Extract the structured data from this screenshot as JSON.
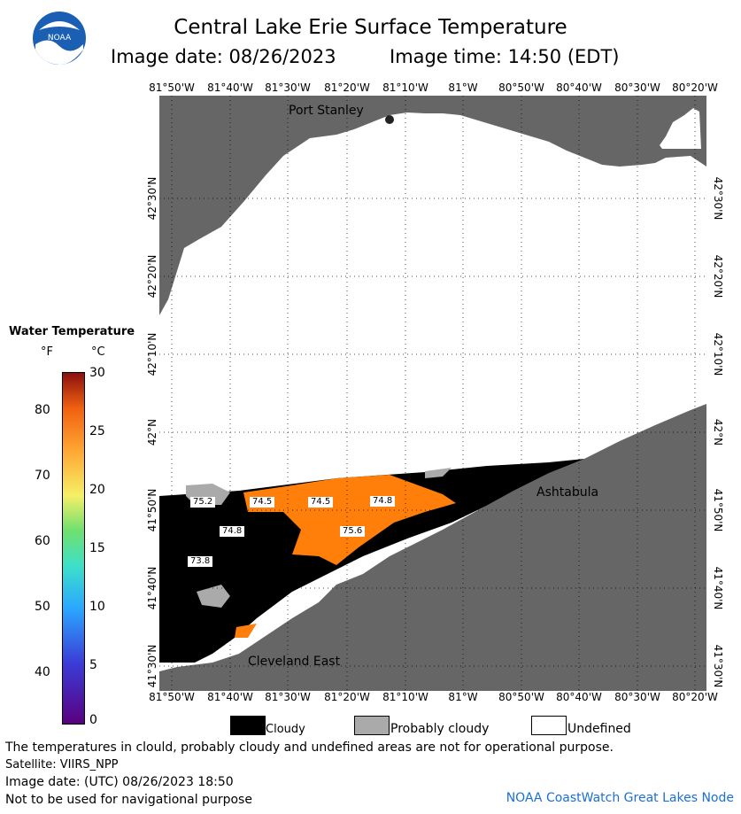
{
  "title": "Central Lake Erie Surface Temperature",
  "image_date_label": "Image date: 08/26/2023",
  "image_time_label": "Image time: 14:50 (EDT)",
  "logo_text": "NOAA",
  "longitudes": [
    "81°50'W",
    "81°40'W",
    "81°30'W",
    "81°20'W",
    "81°10'W",
    "81°W",
    "80°50'W",
    "80°40'W",
    "80°30'W",
    "80°20'W"
  ],
  "latitudes": [
    "42°30'N",
    "42°20'N",
    "42°10'N",
    "42°N",
    "41°50'N",
    "41°40'N",
    "41°30'N"
  ],
  "places": {
    "port_stanley": "Port Stanley",
    "ashtabula": "Ashtabula",
    "cleveland_east": "Cleveland East"
  },
  "temp_labels": [
    "75.2",
    "74.5",
    "74.5",
    "74.8",
    "74.8",
    "75.6",
    "73.8"
  ],
  "legend": {
    "title": "Water Temperature",
    "unit_f": "°F",
    "unit_c": "°C",
    "f_ticks": [
      "80",
      "70",
      "60",
      "50",
      "40"
    ],
    "c_ticks": [
      "30",
      "25",
      "20",
      "15",
      "10",
      "5",
      "0"
    ]
  },
  "key": {
    "cloudy": "Cloudy",
    "probably_cloudy": "Probably cloudy",
    "undefined": "Undefined"
  },
  "colors": {
    "land": "#666666",
    "cloud": "#000000",
    "probably_cloudy": "#aaaaaa",
    "water_warm": "#ff7f0a",
    "undefined": "#ffffff"
  },
  "footer": {
    "note": "The temperatures in clould, probably cloudy and undefined areas are not for operational purpose.",
    "satellite": "Satellite: VIIRS_NPP",
    "utc_date": "Image date: (UTC) 08/26/2023   18:50",
    "nav": "Not to be used for navigational purpose",
    "credit": "NOAA CoastWatch Great Lakes Node"
  }
}
